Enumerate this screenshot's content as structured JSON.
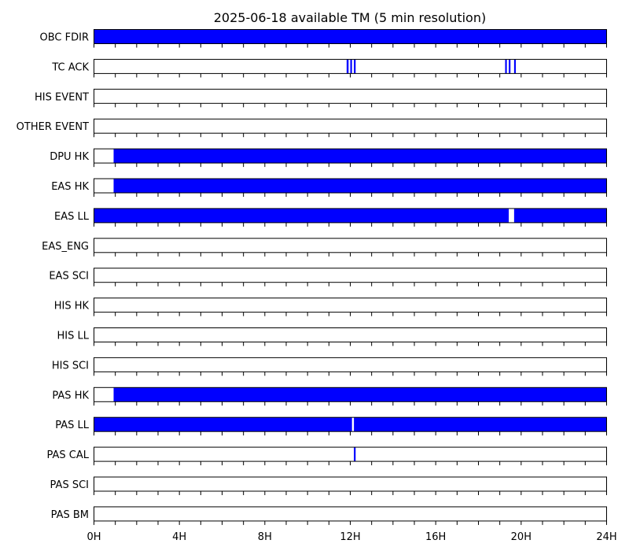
{
  "chart_data": {
    "type": "heatmap",
    "title": "2025-06-18 available TM (5 min resolution)",
    "xlabel": "",
    "ylabel": "",
    "x_unit": "hours",
    "xlim": [
      0,
      24
    ],
    "x_ticks": [
      0,
      4,
      8,
      12,
      16,
      20,
      24
    ],
    "x_tick_labels": [
      "0H",
      "4H",
      "8H",
      "12H",
      "16H",
      "20H",
      "24H"
    ],
    "minor_tick_step_hours": 1,
    "resolution_minutes": 5,
    "grid": false,
    "legend": "none",
    "series": [
      {
        "name": "OBC FDIR",
        "available": [
          [
            0,
            24
          ]
        ]
      },
      {
        "name": "TC ACK",
        "available": [
          [
            11.83,
            11.92
          ],
          [
            12.0,
            12.08
          ],
          [
            12.17,
            12.25
          ],
          [
            19.25,
            19.33
          ],
          [
            19.42,
            19.5
          ],
          [
            19.67,
            19.75
          ]
        ]
      },
      {
        "name": "HIS EVENT",
        "available": []
      },
      {
        "name": "OTHER EVENT",
        "available": []
      },
      {
        "name": "DPU HK",
        "available": [
          [
            0.92,
            24
          ]
        ]
      },
      {
        "name": "EAS HK",
        "available": [
          [
            0.92,
            24
          ]
        ]
      },
      {
        "name": "EAS LL",
        "available": [
          [
            0,
            19.42
          ],
          [
            19.67,
            24
          ]
        ]
      },
      {
        "name": "EAS_ENG",
        "available": []
      },
      {
        "name": "EAS SCI",
        "available": []
      },
      {
        "name": "HIS HK",
        "available": []
      },
      {
        "name": "HIS LL",
        "available": []
      },
      {
        "name": "HIS SCI",
        "available": []
      },
      {
        "name": "PAS HK",
        "available": [
          [
            0.92,
            24
          ]
        ]
      },
      {
        "name": "PAS LL",
        "available": [
          [
            0,
            12.08
          ],
          [
            12.17,
            24
          ]
        ]
      },
      {
        "name": "PAS CAL",
        "available": [
          [
            12.17,
            12.25
          ]
        ]
      },
      {
        "name": "PAS SCI",
        "available": []
      },
      {
        "name": "PAS BM",
        "available": []
      }
    ],
    "colors": {
      "available": "#0000ff",
      "empty": "#ffffff",
      "frame": "#000000"
    }
  }
}
